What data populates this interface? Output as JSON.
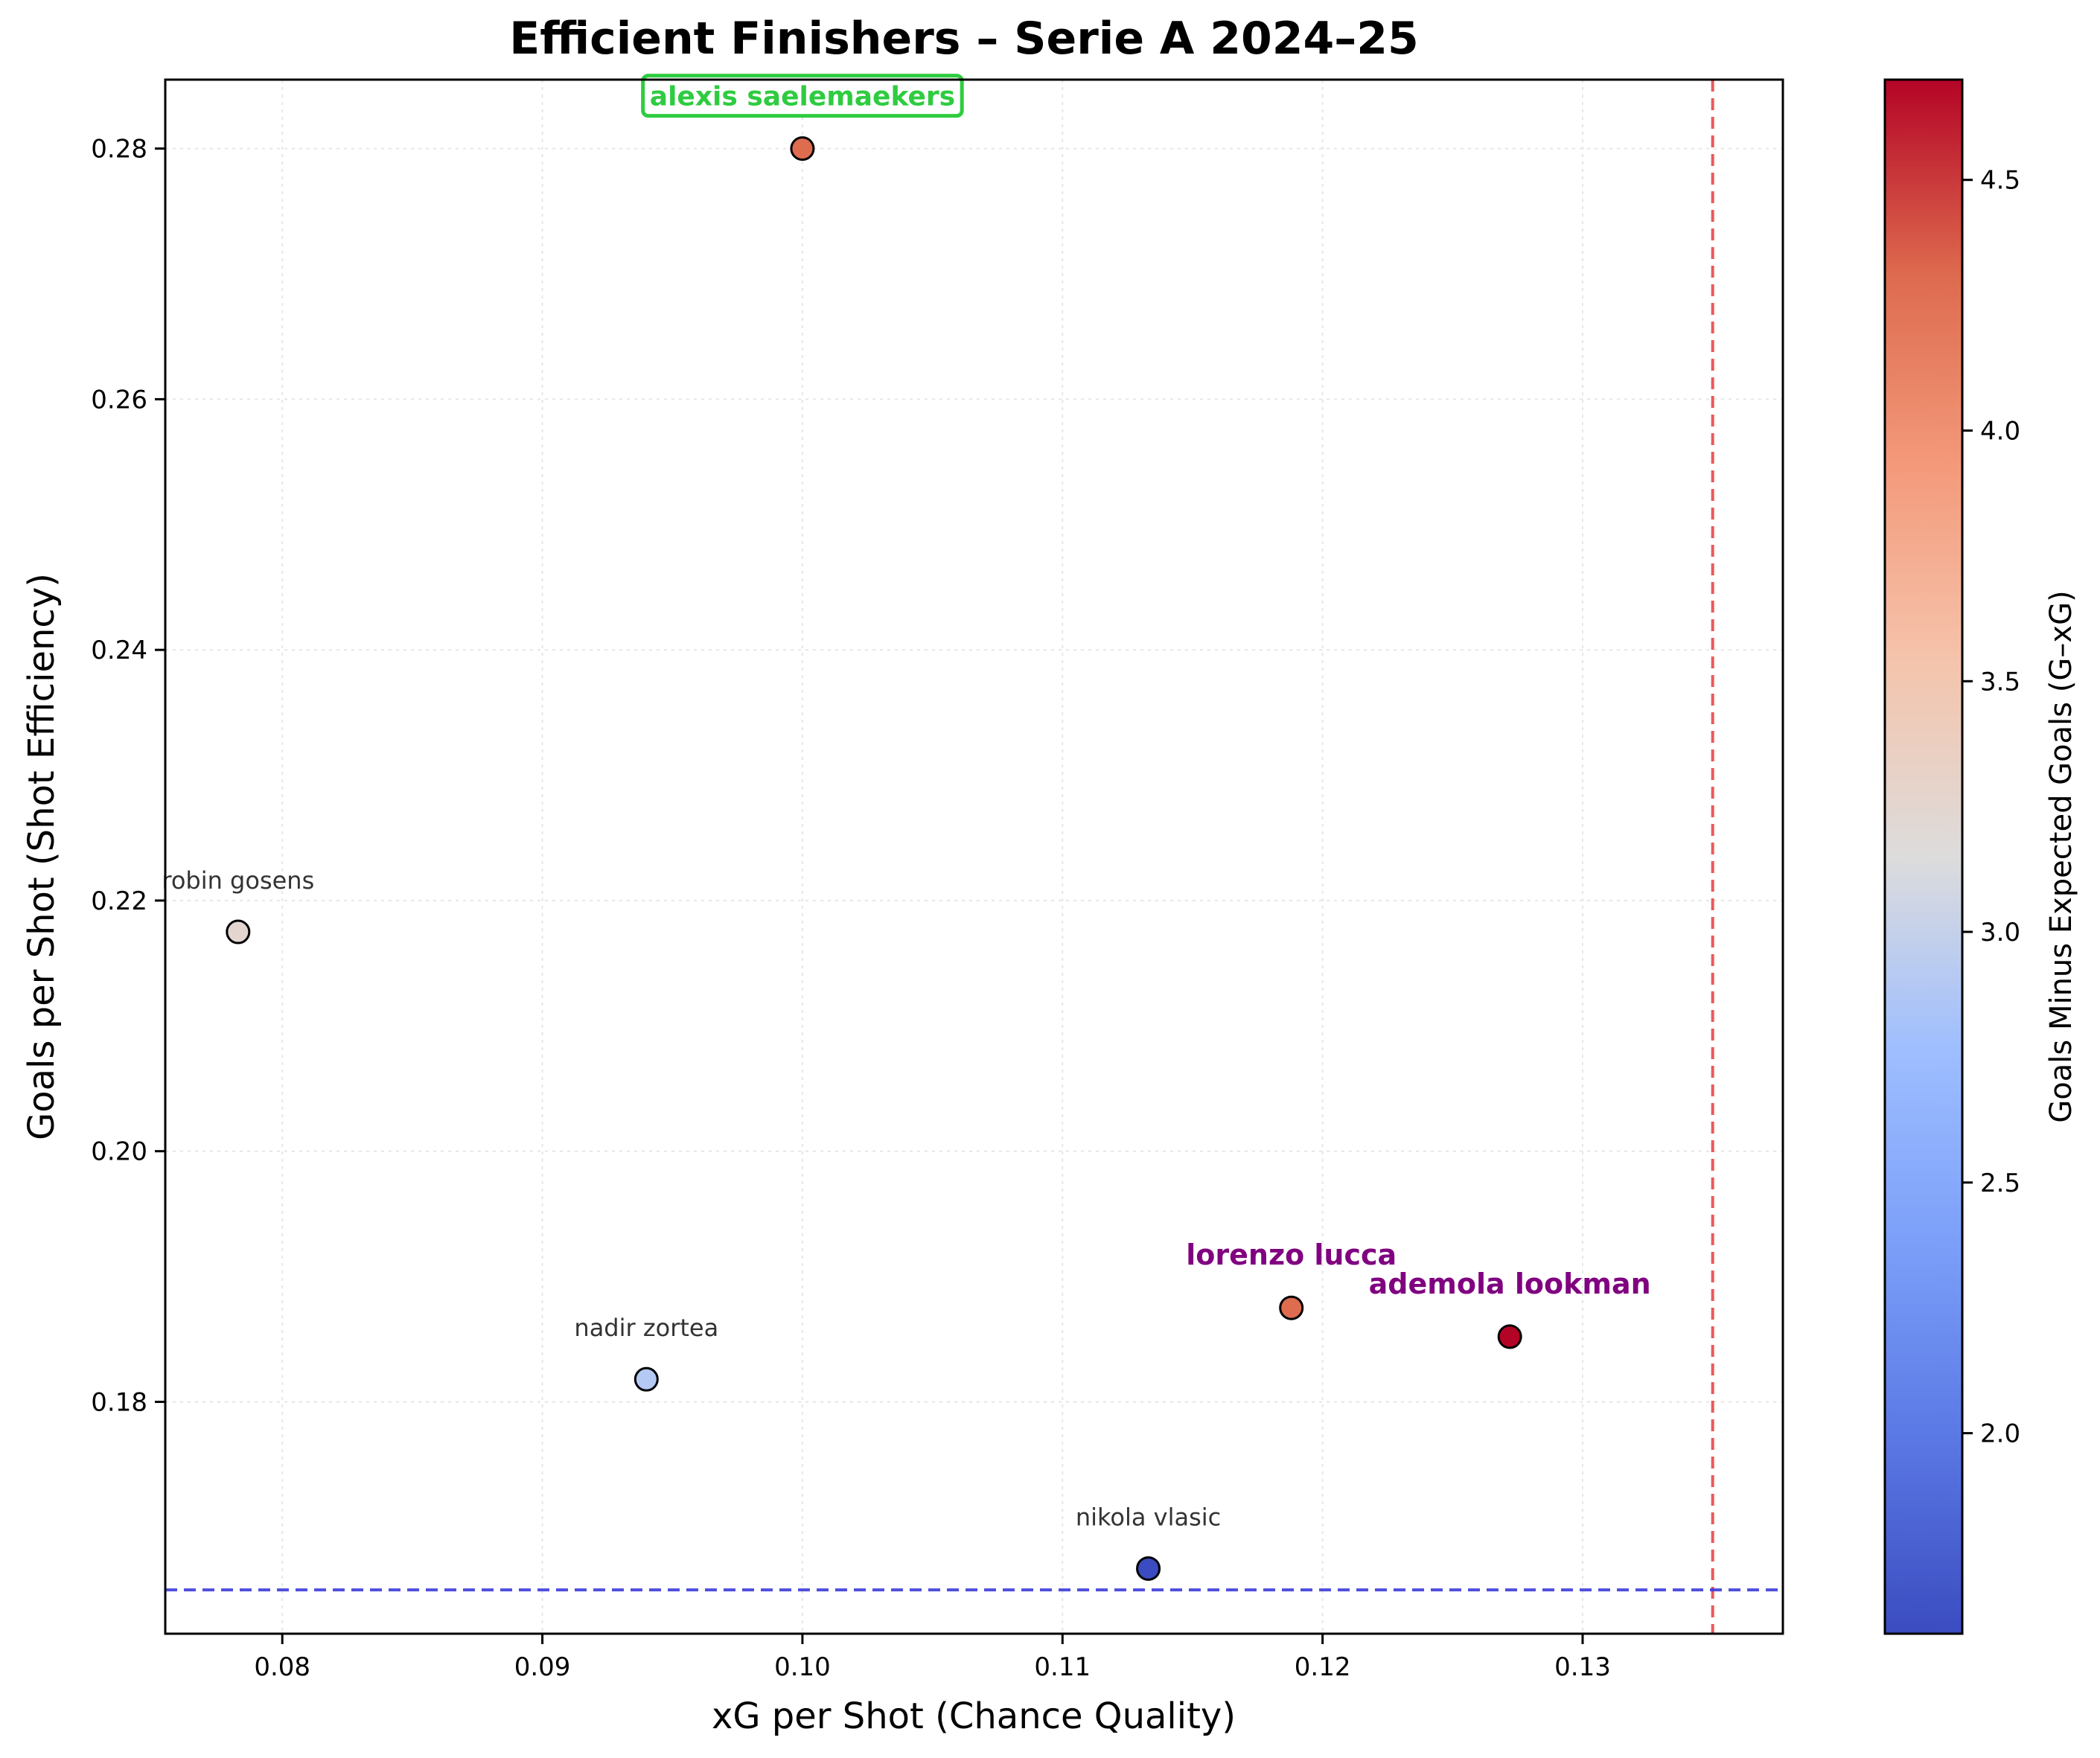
{
  "chart_data": {
    "type": "scatter",
    "title": "Efficient Finishers – Serie A 2024–25",
    "xlabel": "xG per Shot (Chance Quality)",
    "ylabel": "Goals per Shot (Shot Efficiency)",
    "xlim": [
      0.0755,
      0.1377
    ],
    "ylim": [
      0.1615,
      0.2855
    ],
    "xticks": [
      {
        "value": 0.08,
        "label": "0.08"
      },
      {
        "value": 0.09,
        "label": "0.09"
      },
      {
        "value": 0.1,
        "label": "0.10"
      },
      {
        "value": 0.11,
        "label": "0.11"
      },
      {
        "value": 0.12,
        "label": "0.12"
      },
      {
        "value": 0.13,
        "label": "0.13"
      }
    ],
    "yticks": [
      {
        "value": 0.18,
        "label": "0.18"
      },
      {
        "value": 0.2,
        "label": "0.20"
      },
      {
        "value": 0.22,
        "label": "0.22"
      },
      {
        "value": 0.24,
        "label": "0.24"
      },
      {
        "value": 0.26,
        "label": "0.26"
      },
      {
        "value": 0.28,
        "label": "0.28"
      }
    ],
    "grid": true,
    "colormap": "coolwarm",
    "colorbar": {
      "label": "Goals Minus Expected Goals (G–xG)",
      "range": [
        1.6,
        4.7
      ],
      "ticks": [
        {
          "value": 2.0,
          "label": "2.0"
        },
        {
          "value": 2.5,
          "label": "2.5"
        },
        {
          "value": 3.0,
          "label": "3.0"
        },
        {
          "value": 3.5,
          "label": "3.5"
        },
        {
          "value": 4.0,
          "label": "4.0"
        },
        {
          "value": 4.5,
          "label": "4.5"
        }
      ]
    },
    "reference_lines": [
      {
        "orientation": "vertical",
        "value": 0.135,
        "color": "#e8484a",
        "style": "dashed"
      },
      {
        "orientation": "horizontal",
        "value": 0.165,
        "color": "#3b3bdb",
        "style": "dashed"
      }
    ],
    "points": [
      {
        "label": "alexis saelemaekers",
        "x": 0.1,
        "y": 0.28,
        "c": 4.3,
        "label_style": "highlight"
      },
      {
        "label": "robin gosens",
        "x": 0.0783,
        "y": 0.2175,
        "c": 3.25,
        "label_style": "plain"
      },
      {
        "label": "nadir zortea",
        "x": 0.094,
        "y": 0.1818,
        "c": 2.9,
        "label_style": "plain"
      },
      {
        "label": "lorenzo lucca",
        "x": 0.1188,
        "y": 0.1875,
        "c": 4.3,
        "label_style": "bold"
      },
      {
        "label": "ademola lookman",
        "x": 0.1272,
        "y": 0.1852,
        "c": 4.7,
        "label_style": "bold"
      },
      {
        "label": "nikola vlasic",
        "x": 0.1133,
        "y": 0.1667,
        "c": 1.6,
        "label_style": "plain"
      }
    ],
    "colors": {
      "highlight_label": "#2ecc40",
      "bold_label": "#800080",
      "plain_label": "#333333"
    }
  }
}
